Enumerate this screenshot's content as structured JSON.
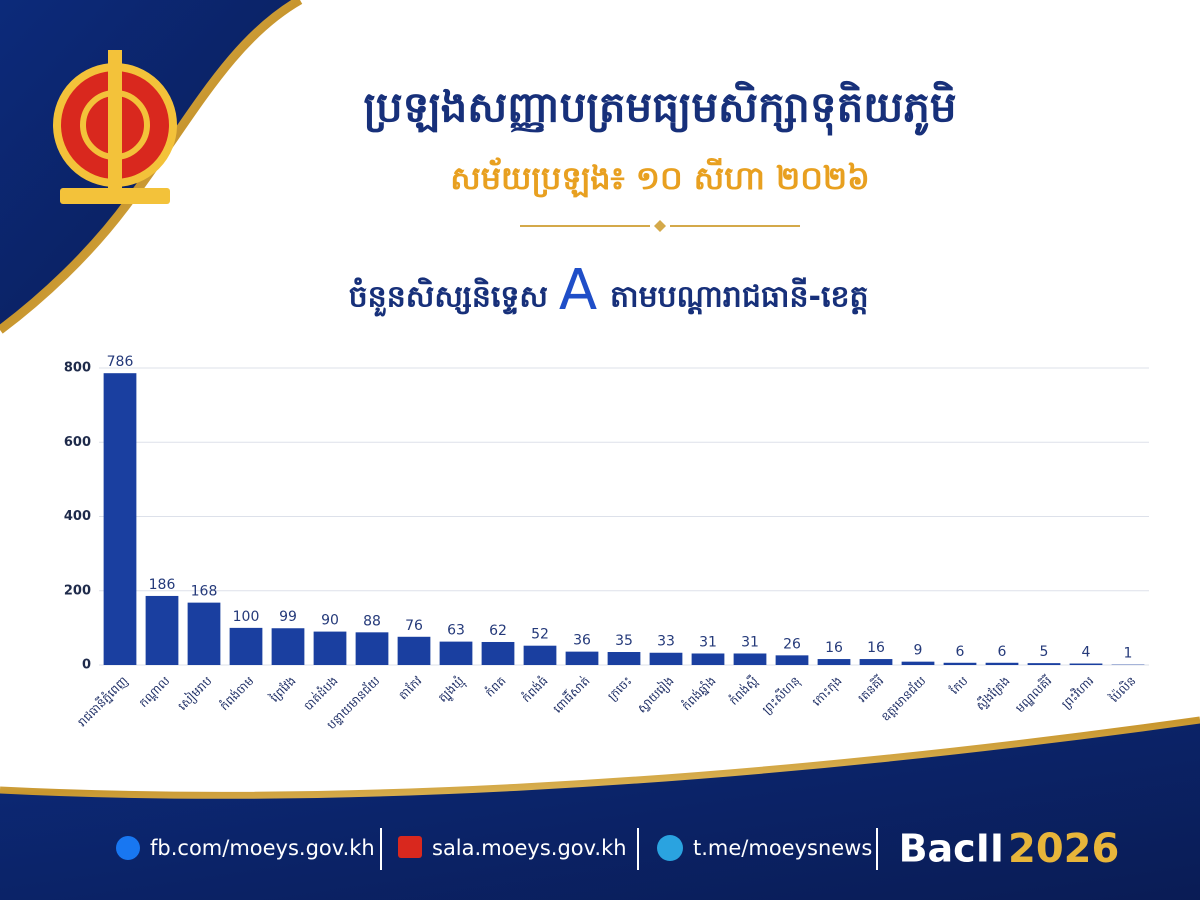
{
  "header": {
    "title": "ប្រឡងសញ្ញាបត្រមធ្យមសិក្សាទុតិយភូមិ",
    "subtitle": "សម័យប្រឡង៖ ១០ សីហា ២០២៦",
    "heading_before": "ចំនួនសិស្សនិទ្ទេស",
    "heading_letter": "A",
    "heading_after": "តាមបណ្ដារាជធានី-ខេត្ត"
  },
  "chart_data": {
    "type": "bar",
    "categories": [
      "រាជធានីភ្នំពេញ",
      "កណ្ដាល",
      "សៀមរាប",
      "កំពង់ចាម",
      "ព្រៃវែង",
      "បាត់ដំបង",
      "បន្ទាយមានជ័យ",
      "តាកែវ",
      "ត្បូងឃ្មុំ",
      "កំពត",
      "កំពង់ធំ",
      "ពោធិ៍សាត់",
      "ក្រចេះ",
      "ស្វាយរៀង",
      "កំពង់ឆ្នាំង",
      "កំពង់ស្ពឺ",
      "ព្រះសីហនុ",
      "កោះកុង",
      "រតនគិរី",
      "ឧត្ដរមានជ័យ",
      "កែប",
      "ស្ទឹងត្រែង",
      "មណ្ឌលគិរី",
      "ព្រះវិហារ",
      "ប៉ៃលិន"
    ],
    "values": [
      786,
      186,
      168,
      100,
      99,
      90,
      88,
      76,
      63,
      62,
      52,
      36,
      35,
      33,
      31,
      31,
      26,
      16,
      16,
      9,
      6,
      6,
      5,
      4,
      1
    ],
    "color": "#1a3fa0",
    "ylim": [
      0,
      800
    ],
    "yticks": [
      0,
      200,
      400,
      600,
      800
    ],
    "grid": true
  },
  "footer": {
    "facebook": "fb.com/moeys.gov.kh",
    "website": "sala.moeys.gov.kh",
    "telegram": "t.me/moeysnews",
    "brand": "BacII",
    "year": "2026"
  }
}
